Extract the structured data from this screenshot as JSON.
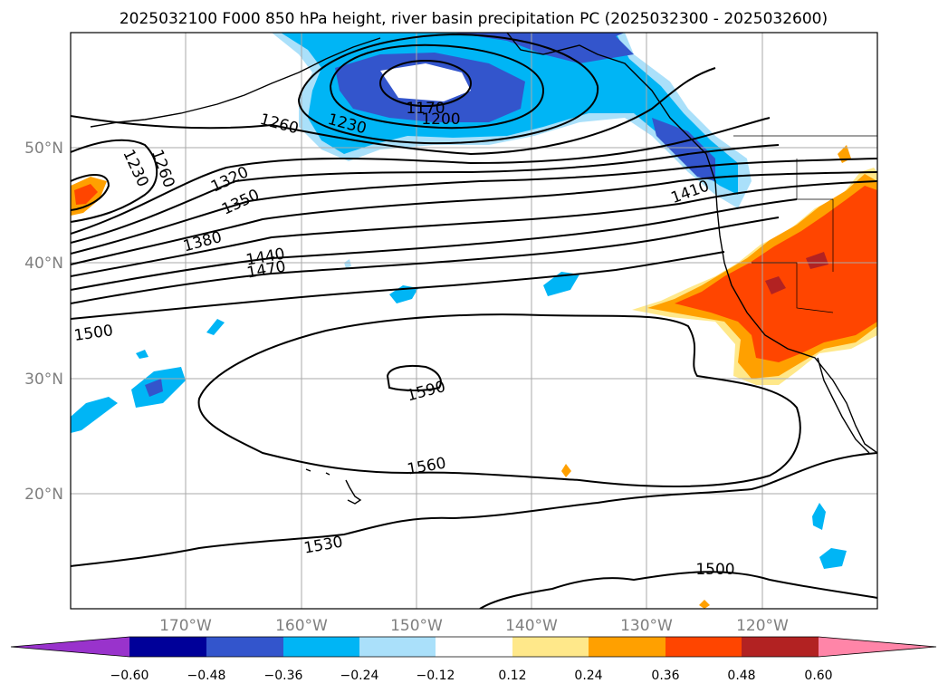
{
  "title": "2025032100 F000 850 hPa height, river basin precipitation PC (2025032300 - 2025032600)",
  "lat_labels": [
    "50°N",
    "40°N",
    "30°N",
    "20°N"
  ],
  "lon_labels": [
    "170°W",
    "160°W",
    "150°W",
    "140°W",
    "130°W",
    "120°W"
  ],
  "contour_labels": [
    "1170",
    "1200",
    "1230",
    "1260",
    "1260",
    "1230",
    "1320",
    "1350",
    "1380",
    "1410",
    "1440",
    "1470",
    "1500",
    "1590",
    "1560",
    "1530",
    "1500"
  ],
  "colorbar": {
    "colors": [
      "#9933cc",
      "#000099",
      "#3355cc",
      "#00b5f5",
      "#aae0fa",
      "#ffffff",
      "#ffe88a",
      "#ffa000",
      "#ff4500",
      "#b22222",
      "#ff85a8"
    ],
    "ticks": [
      "−0.60",
      "−0.48",
      "−0.36",
      "−0.24",
      "−0.12",
      "0.12",
      "0.24",
      "0.36",
      "0.48",
      "0.60"
    ]
  },
  "colors": {
    "neg_dark": "#3355cc",
    "neg_mid": "#00b5f5",
    "neg_light": "#aae0fa",
    "pos_light": "#ffe88a",
    "pos_mid": "#ffa000",
    "pos_dark": "#ff4500",
    "pos_darker": "#b22222"
  }
}
